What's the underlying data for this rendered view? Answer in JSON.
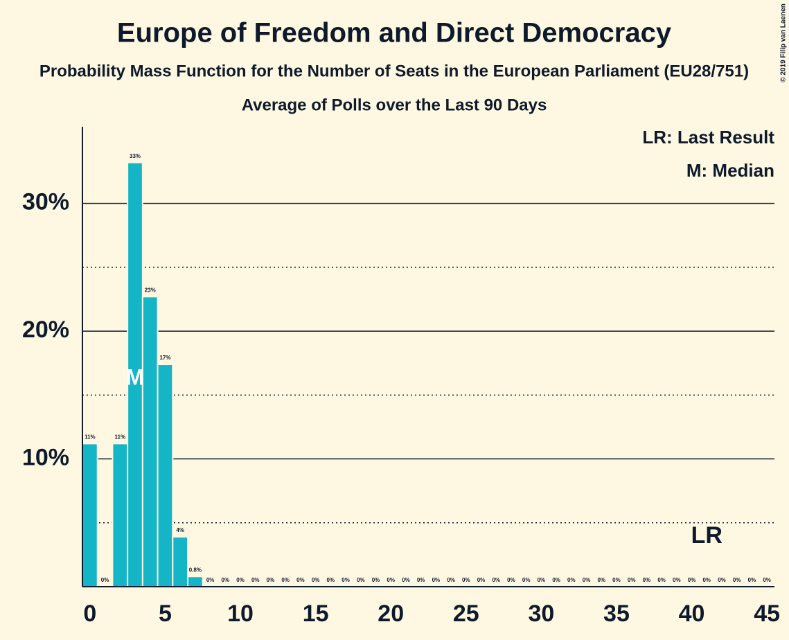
{
  "chart_data": {
    "type": "bar",
    "title": "Europe of Freedom and Direct Democracy",
    "subtitle": "Probability Mass Function for the Number of Seats in the European Parliament (EU28/751)",
    "caption": "Average of Polls over the Last 90 Days",
    "copyright": "© 2019 Filip van Laenen",
    "x": [
      0,
      1,
      2,
      3,
      4,
      5,
      6,
      7,
      8,
      9,
      10,
      11,
      12,
      13,
      14,
      15,
      16,
      17,
      18,
      19,
      20,
      21,
      22,
      23,
      24,
      25,
      26,
      27,
      28,
      29,
      30,
      31,
      32,
      33,
      34,
      35,
      36,
      37,
      38,
      39,
      40,
      41,
      42,
      43,
      44,
      45
    ],
    "values": [
      11.2,
      0,
      11.2,
      33.2,
      22.7,
      17.4,
      3.9,
      0.8,
      0,
      0,
      0,
      0,
      0,
      0,
      0,
      0,
      0,
      0,
      0,
      0,
      0,
      0,
      0,
      0,
      0,
      0,
      0,
      0,
      0,
      0,
      0,
      0,
      0,
      0,
      0,
      0,
      0,
      0,
      0,
      0,
      0,
      0,
      0,
      0,
      0,
      0
    ],
    "value_labels": [
      "11%",
      "0%",
      "11%",
      "33%",
      "23%",
      "17%",
      "4%",
      "0.8%",
      "0%",
      "0%",
      "0%",
      "0%",
      "0%",
      "0%",
      "0%",
      "0%",
      "0%",
      "0%",
      "0%",
      "0%",
      "0%",
      "0%",
      "0%",
      "0%",
      "0%",
      "0%",
      "0%",
      "0%",
      "0%",
      "0%",
      "0%",
      "0%",
      "0%",
      "0%",
      "0%",
      "0%",
      "0%",
      "0%",
      "0%",
      "0%",
      "0%",
      "0%",
      "0%",
      "0%",
      "0%",
      "0%"
    ],
    "color": "#13b5c6",
    "xlim": [
      -0.5,
      45.5
    ],
    "xticks": [
      0,
      5,
      10,
      15,
      20,
      25,
      30,
      35,
      40,
      45
    ],
    "ylim": [
      0,
      36
    ],
    "yticks": [
      {
        "value": 10,
        "label": "10%"
      },
      {
        "value": 20,
        "label": "20%"
      },
      {
        "value": 30,
        "label": "30%"
      }
    ],
    "minor_yticks": [
      5,
      15,
      25
    ],
    "grid": true,
    "legend": [
      "LR: Last Result",
      "M: Median"
    ],
    "last_result": {
      "x": 41,
      "label": "LR"
    },
    "median": {
      "x": 3,
      "label": "M"
    }
  }
}
